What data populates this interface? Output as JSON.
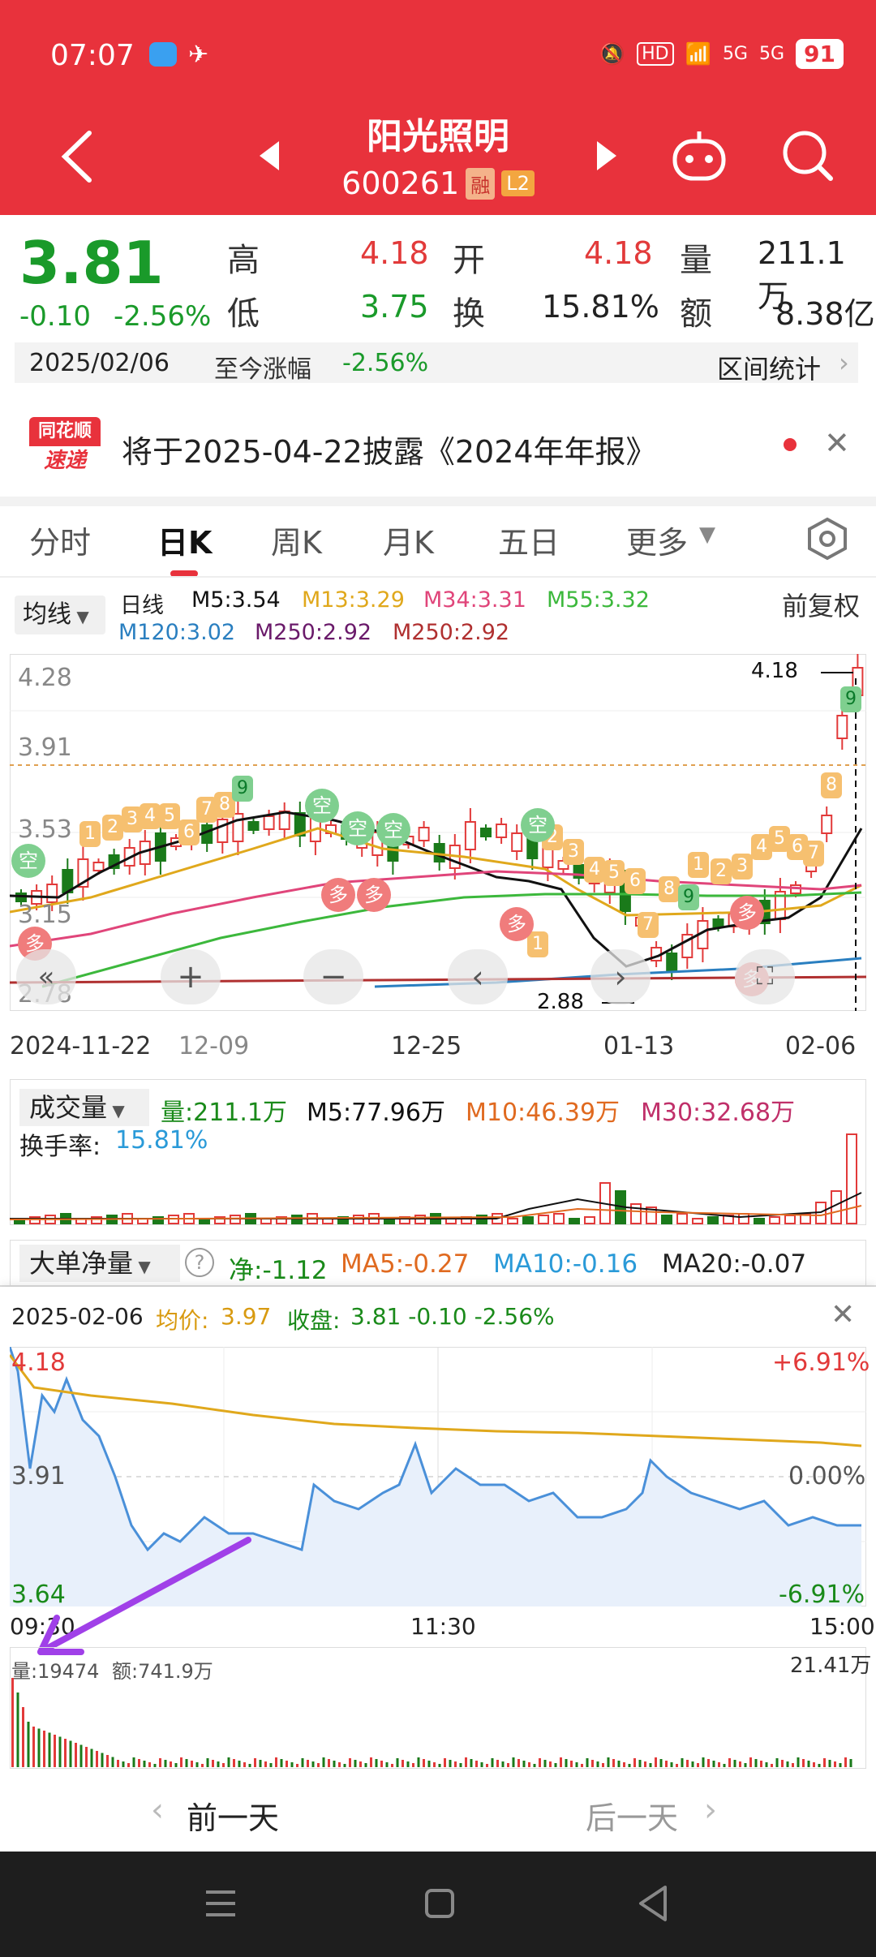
{
  "status_bar": {
    "time": "07:07",
    "battery": "91",
    "hd": "HD",
    "net1": "5G",
    "net2": "5G"
  },
  "header": {
    "name": "阳光照明",
    "code": "600261",
    "tag_rong": "融",
    "tag_l2": "L2"
  },
  "quote": {
    "price": "3.81",
    "change": "-0.10",
    "change_pct": "-2.56%",
    "high_label": "高",
    "high": "4.18",
    "open_label": "开",
    "open": "4.18",
    "vol_label": "量",
    "vol": "211.1万",
    "low_label": "低",
    "low": "3.75",
    "turn_label": "换",
    "turn": "15.81%",
    "amt_label": "额",
    "amt": "8.38亿"
  },
  "date_bar": {
    "date": "2025/02/06",
    "label": "至今涨幅",
    "pct": "-2.56%",
    "stats": "区间统计"
  },
  "notice": {
    "logo_top": "同花顺",
    "logo_bottom": "速递",
    "text": "将于2025-04-22披露《2024年年报》"
  },
  "tabs": [
    "分时",
    "日K",
    "周K",
    "月K",
    "五日",
    "更多"
  ],
  "kline": {
    "ma_btn": "均线",
    "period": "日线",
    "adjust": "前复权",
    "m5": "M5:3.54",
    "m13": "M13:3.29",
    "m34": "M34:3.31",
    "m55": "M55:3.32",
    "m120": "M120:3.02",
    "m250a": "M250:2.92",
    "m250b": "M250:2.92",
    "y_top": "4.28",
    "y_mid1": "3.91",
    "y_mid2": "3.53",
    "y_mid3": "3.15",
    "y_bottom": "2.78",
    "max_label": "4.18",
    "min_label": "2.88",
    "dates": [
      "2024-11-22",
      "12-09",
      "12-25",
      "01-13",
      "02-06"
    ],
    "kong": "空",
    "duo": "多"
  },
  "volume": {
    "btn": "成交量",
    "vol": "量:211.1万",
    "m5": "M5:77.96万",
    "m10": "M10:46.39万",
    "m30": "M30:32.68万",
    "turn_label": "换手率:",
    "turn": "15.81%"
  },
  "bigorder": {
    "btn": "大单净量",
    "net": "净:-1.12",
    "ma5": "MA5:-0.27",
    "ma10": "MA10:-0.16",
    "ma20": "MA20:-0.07"
  },
  "intraday": {
    "date": "2025-02-06",
    "avg_label": "均价:",
    "avg": "3.97",
    "close_label": "收盘:",
    "close": "3.81 -0.10 -2.56%",
    "y_top": "4.18",
    "y_mid": "3.91",
    "y_bottom": "3.64",
    "pct_top": "+6.91%",
    "pct_mid": "0.00%",
    "pct_bottom": "-6.91%",
    "t_start": "09:30",
    "t_mid": "11:30",
    "t_end": "15:00",
    "vol_label": "量:19474",
    "amt_label": "额:741.9万",
    "vol_max": "21.41万"
  },
  "footer": {
    "prev": "前一天",
    "next": "后一天"
  },
  "colors": {
    "brand_red": "#e8323c",
    "up": "#e23a3a",
    "down": "#1a7a1a",
    "avg_line": "#e0a81c",
    "price_line": "#4a90d9"
  }
}
